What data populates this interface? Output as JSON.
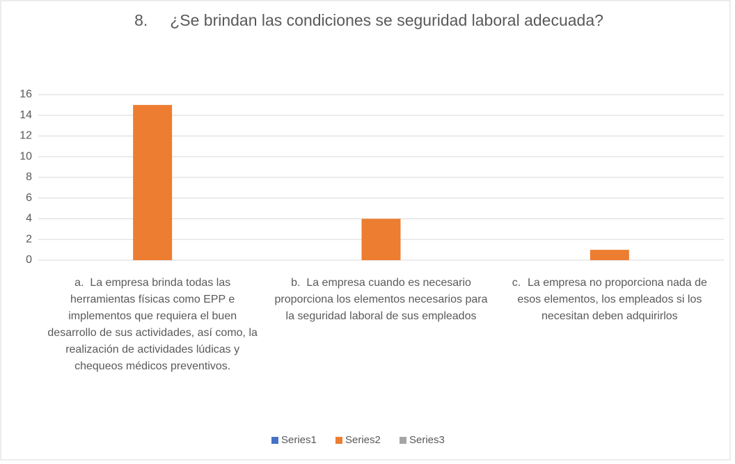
{
  "chart_data": {
    "type": "bar",
    "title": "8.\t¿Se brindan las condiciones se seguridad laboral adecuada?",
    "categories": [
      "a.\tLa empresa brinda todas las herramientas físicas como EPP e implementos que requiera el buen desarrollo de sus actividades, así como, la realización de actividades lúdicas y chequeos médicos preventivos.",
      "b.\tLa empresa cuando es necesario proporciona los elementos necesarios para la seguridad laboral de sus empleados",
      "c.\tLa empresa no proporciona nada de esos elementos, los empleados si los necesitan deben adquirirlos"
    ],
    "series": [
      {
        "name": "Series1",
        "color": "#4472c4",
        "values": [
          null,
          null,
          null
        ]
      },
      {
        "name": "Series2",
        "color": "#ed7d31",
        "values": [
          15,
          4,
          1
        ]
      },
      {
        "name": "Series3",
        "color": "#a5a5a5",
        "values": [
          null,
          null,
          null
        ]
      }
    ],
    "ylim": [
      0,
      16
    ],
    "yticks": [
      0,
      2,
      4,
      6,
      8,
      10,
      12,
      14,
      16
    ],
    "grid": true,
    "legend": "bottom"
  }
}
